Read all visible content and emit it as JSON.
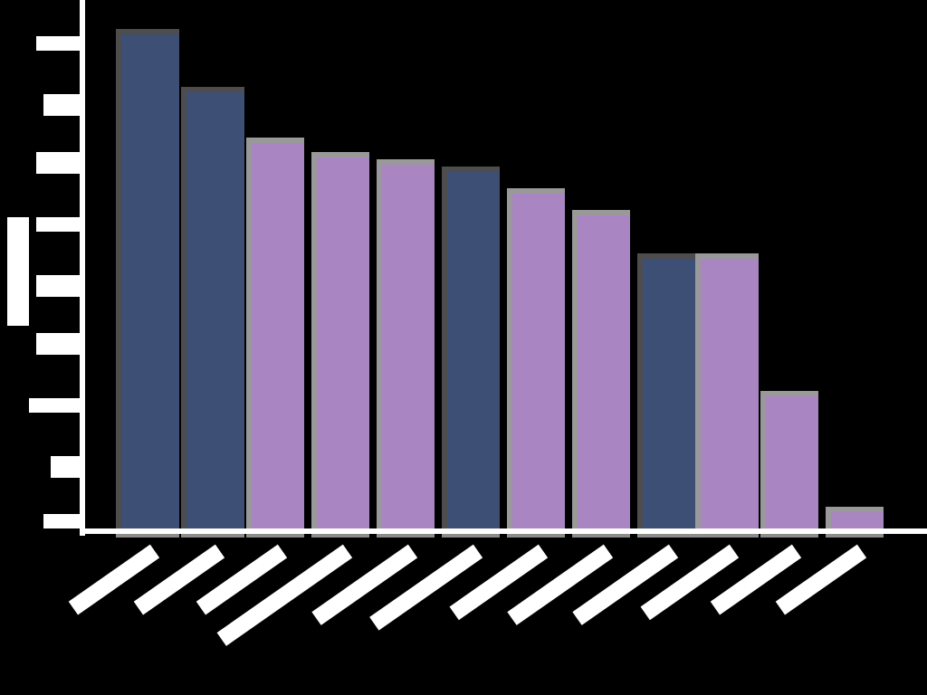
{
  "chart_data": {
    "type": "bar",
    "title": "",
    "xlabel": "",
    "ylabel": "[obscured]",
    "note": "All text labels in the image are redacted as solid white blocks; values are relative pixel heights above baseline.",
    "categories": [
      "[label 1]",
      "[label 2]",
      "[label 3]",
      "[label 4]",
      "[label 5]",
      "[label 6]",
      "[label 7]",
      "[label 8]",
      "[label 9]",
      "[label 10]",
      "[label 11]",
      "[label 12]"
    ],
    "values": [
      554,
      490,
      434,
      418,
      410,
      402,
      378,
      354,
      306,
      306,
      154,
      26
    ],
    "bar_groups": [
      "navy",
      "navy",
      "purple",
      "purple",
      "purple",
      "navy",
      "purple",
      "purple",
      "navy",
      "purple",
      "purple",
      "purple"
    ],
    "colors": {
      "navy": "#3d4f75",
      "purple": "#a985c2",
      "background": "#000000",
      "axis": "#ffffff"
    },
    "ylim": [
      0,
      586
    ],
    "y_ticks": [
      "[tick]",
      "[tick]",
      "[tick]",
      "[tick]",
      "[tick]",
      "[tick]",
      "[tick]",
      "[tick]",
      "[tick]"
    ],
    "grid": false,
    "legend": "none"
  },
  "y_axis": {
    "label": "[obscured]"
  }
}
